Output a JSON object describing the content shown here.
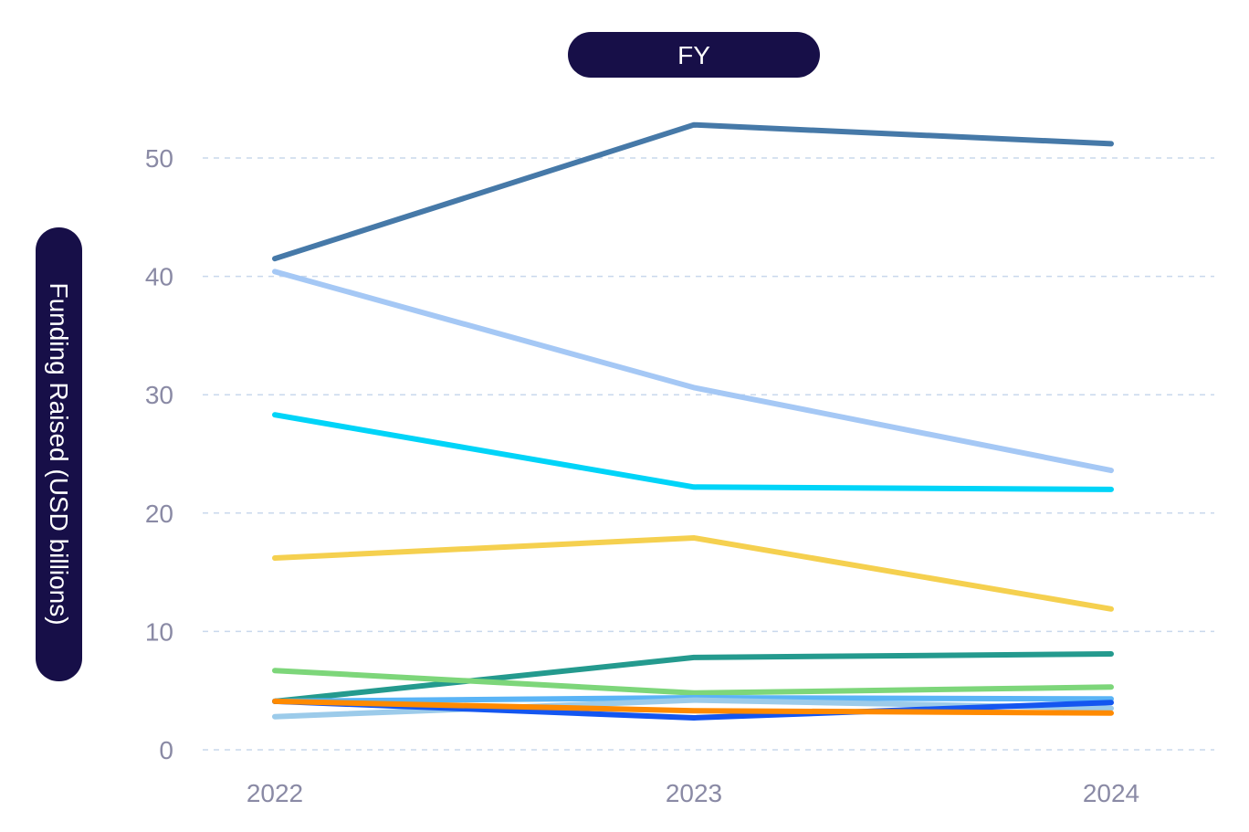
{
  "chart_data": {
    "type": "line",
    "xlabel": "FY",
    "ylabel": "Funding Raised (USD billions)",
    "categories": [
      "2022",
      "2023",
      "2024"
    ],
    "ylim": [
      0,
      55
    ],
    "yticks": [
      0,
      10,
      20,
      30,
      40,
      50
    ],
    "grid": true,
    "series": [
      {
        "color": "#4679a8",
        "values": [
          41.5,
          52.8,
          51.2
        ]
      },
      {
        "color": "#a5c8f5",
        "values": [
          40.4,
          30.6,
          23.6
        ]
      },
      {
        "color": "#00d4f8",
        "values": [
          28.3,
          22.2,
          22.0
        ]
      },
      {
        "color": "#f5d04f",
        "values": [
          16.2,
          17.9,
          11.9
        ]
      },
      {
        "color": "#249a8e",
        "values": [
          4.1,
          7.8,
          8.1
        ]
      },
      {
        "color": "#7dd67a",
        "values": [
          6.7,
          4.8,
          5.3
        ]
      },
      {
        "color": "#5ab4f6",
        "values": [
          4.1,
          4.4,
          4.3
        ]
      },
      {
        "color": "#9ccbea",
        "values": [
          2.8,
          4.2,
          3.5
        ]
      },
      {
        "color": "#1456f0",
        "values": [
          4.1,
          2.7,
          4.0
        ]
      },
      {
        "color": "#ff8a00",
        "values": [
          4.1,
          3.3,
          3.1
        ]
      }
    ]
  }
}
